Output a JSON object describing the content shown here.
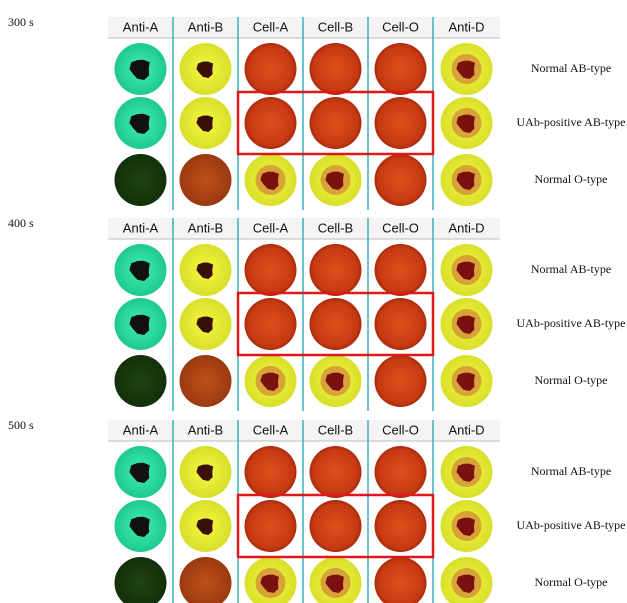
{
  "panels": [
    {
      "time": "300 s",
      "headers": [
        "Anti-A",
        "Anti-B",
        "Cell-A",
        "Cell-B",
        "Cell-O",
        "Anti-D"
      ],
      "rows": [
        "Normal AB-type",
        "UAb-positive  AB-type",
        "Normal O-type"
      ]
    },
    {
      "time": "400 s",
      "headers": [
        "Anti-A",
        "Anti-B",
        "Cell-A",
        "Cell-B",
        "Cell-O",
        "Anti-D"
      ],
      "rows": [
        "Normal AB-type",
        "UAb-positive  AB-type",
        "Normal O-type"
      ]
    },
    {
      "time": "500 s",
      "headers": [
        "Anti-A",
        "Anti-B",
        "Cell-A",
        "Cell-B",
        "Cell-O",
        "Anti-D"
      ],
      "rows": [
        "Normal AB-type",
        "UAb-positive  AB-type",
        "Normal O-type"
      ]
    }
  ]
}
